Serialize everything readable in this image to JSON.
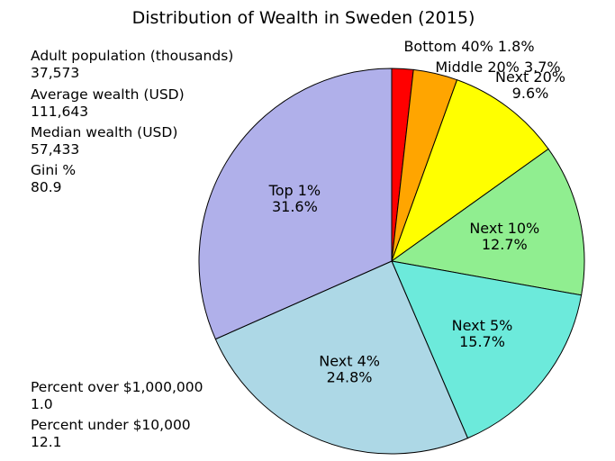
{
  "chart_data": {
    "type": "pie",
    "title": "Distribution of Wealth in Sweden (2015)",
    "slices": [
      {
        "name": "Bottom 40%",
        "value": 1.8,
        "label": "Bottom 40% 1.8%",
        "color": "#ff0000"
      },
      {
        "name": "Middle 20%",
        "value": 3.7,
        "label": "Middle 20% 3.7%",
        "color": "#ffa500"
      },
      {
        "name": "Next 20%",
        "value": 9.6,
        "label": "Next 20%\n9.6%",
        "color": "#ffff00"
      },
      {
        "name": "Next 10%",
        "value": 12.7,
        "label": "Next 10%\n12.7%",
        "color": "#90ee90"
      },
      {
        "name": "Next 5%",
        "value": 15.7,
        "label": "Next 5%\n15.7%",
        "color": "#6ceadb"
      },
      {
        "name": "Next 4%",
        "value": 24.8,
        "label": "Next 4%\n24.8%",
        "color": "#add8e6"
      },
      {
        "name": "Top 1%",
        "value": 31.6,
        "label": "Top 1%\n31.6%",
        "color": "#b0b0ea"
      }
    ],
    "start_angle_deg": 90,
    "direction": "clockwise"
  },
  "stats_top": [
    {
      "label": "Adult population (thousands)",
      "value": "37,573"
    },
    {
      "label": "Average wealth (USD)",
      "value": "111,643"
    },
    {
      "label": "Median wealth (USD)",
      "value": "57,433"
    },
    {
      "label": "Gini %",
      "value": "80.9"
    }
  ],
  "stats_bottom": [
    {
      "label": "Percent over $1,000,000",
      "value": "1.0"
    },
    {
      "label": "Percent under $10,000",
      "value": "12.1"
    }
  ]
}
